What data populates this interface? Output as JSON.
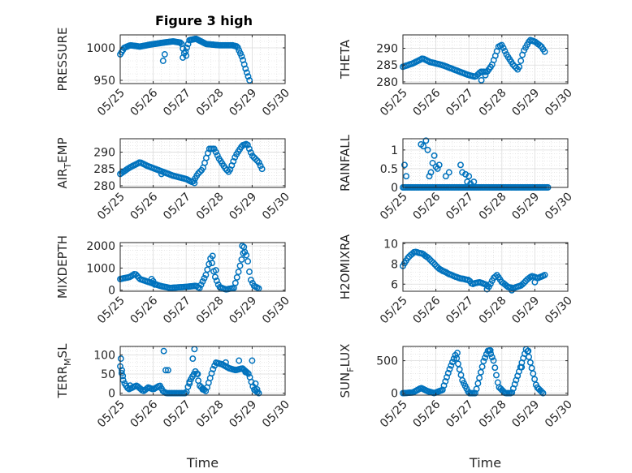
{
  "figure": {
    "title": "Figure 3 high"
  },
  "chart_data": [
    {
      "type": "scatter",
      "ylabel": "PRESSURE",
      "ylim": [
        945,
        1020
      ],
      "yticks": [
        950,
        1000
      ],
      "xlim": [
        0,
        5
      ],
      "xtick_labels": [
        "05/25",
        "05/26",
        "05/27",
        "05/28",
        "05/29",
        "05/30"
      ],
      "grid": true,
      "series": [
        {
          "shape": "mirror",
          "knots": [
            [
              0,
              990
            ],
            [
              0.12,
              1000
            ],
            [
              0.3,
              1004
            ],
            [
              0.6,
              1002
            ],
            [
              0.9,
              1005
            ],
            [
              1.3,
              1008
            ],
            [
              1.6,
              1010
            ],
            [
              1.85,
              1008
            ],
            [
              1.95,
              990
            ],
            [
              2.1,
              1012
            ],
            [
              2.3,
              1014
            ],
            [
              2.6,
              1006
            ],
            [
              3.0,
              1004
            ],
            [
              3.4,
              1004
            ],
            [
              3.55,
              1002
            ],
            [
              3.7,
              985
            ],
            [
              3.8,
              968
            ],
            [
              3.92,
              950
            ]
          ],
          "samples": 100,
          "outliers": [
            [
              1.3,
              980
            ],
            [
              1.35,
              990
            ],
            [
              1.9,
              985
            ],
            [
              2.0,
              988
            ]
          ]
        }
      ]
    },
    {
      "type": "scatter",
      "ylabel": "THETA",
      "ylim": [
        279.5,
        294
      ],
      "yticks": [
        280,
        285,
        290
      ],
      "xlim": [
        0,
        5
      ],
      "xtick_labels": [
        "05/25",
        "05/26",
        "05/27",
        "05/28",
        "05/29",
        "05/30"
      ],
      "grid": true,
      "series": [
        {
          "shape": "mirror",
          "knots": [
            [
              0,
              284.5
            ],
            [
              0.3,
              285.5
            ],
            [
              0.6,
              287
            ],
            [
              0.8,
              286
            ],
            [
              1.2,
              285
            ],
            [
              1.6,
              283.5
            ],
            [
              2.0,
              282
            ],
            [
              2.2,
              281.5
            ],
            [
              2.35,
              283
            ],
            [
              2.55,
              283
            ],
            [
              2.7,
              285
            ],
            [
              2.9,
              290.5
            ],
            [
              3.0,
              291
            ],
            [
              3.15,
              288
            ],
            [
              3.35,
              285
            ],
            [
              3.5,
              283.5
            ],
            [
              3.65,
              289
            ],
            [
              3.85,
              292.5
            ],
            [
              4.0,
              292
            ],
            [
              4.2,
              290.5
            ],
            [
              4.3,
              289
            ]
          ],
          "samples": 90,
          "outliers": [
            [
              2.38,
              280.5
            ],
            [
              2.5,
              282
            ]
          ]
        }
      ]
    },
    {
      "type": "scatter",
      "ylabel": "AIR_TEMP",
      "ylim": [
        279.5,
        294
      ],
      "yticks": [
        280,
        285,
        290
      ],
      "xlim": [
        0,
        5
      ],
      "xtick_labels": [
        "05/25",
        "05/26",
        "05/27",
        "05/28",
        "05/29",
        "05/30"
      ],
      "grid": true,
      "series": [
        {
          "shape": "mirror",
          "knots": [
            [
              0,
              283.5
            ],
            [
              0.3,
              285.5
            ],
            [
              0.6,
              287
            ],
            [
              0.8,
              286
            ],
            [
              1.2,
              284.5
            ],
            [
              1.6,
              283
            ],
            [
              2.0,
              282
            ],
            [
              2.2,
              281
            ],
            [
              2.35,
              283.5
            ],
            [
              2.5,
              285
            ],
            [
              2.7,
              291
            ],
            [
              2.85,
              291
            ],
            [
              3.0,
              288
            ],
            [
              3.2,
              285
            ],
            [
              3.3,
              284
            ],
            [
              3.5,
              289
            ],
            [
              3.7,
              292
            ],
            [
              3.85,
              292.5
            ],
            [
              4.0,
              289
            ],
            [
              4.2,
              287
            ],
            [
              4.3,
              285
            ]
          ],
          "samples": 90,
          "outliers": [
            [
              1.25,
              283.5
            ],
            [
              2.25,
              280.8
            ]
          ]
        }
      ]
    },
    {
      "type": "scatter",
      "ylabel": "RAINFALL",
      "ylim": [
        0,
        1.3
      ],
      "yticks": [
        0,
        0.5,
        1
      ],
      "xlim": [
        0,
        5
      ],
      "xtick_labels": [
        "05/25",
        "05/26",
        "05/27",
        "05/28",
        "05/29",
        "05/30"
      ],
      "grid": true,
      "series": [
        {
          "shape": "mirror",
          "knots": [
            [
              0,
              0
            ],
            [
              4.4,
              0
            ]
          ],
          "samples": 100,
          "outliers": [
            [
              0.05,
              0.6
            ],
            [
              0.1,
              0.3
            ],
            [
              0.55,
              1.15
            ],
            [
              0.62,
              1.1
            ],
            [
              0.7,
              1.25
            ],
            [
              0.75,
              1.0
            ],
            [
              0.8,
              0.3
            ],
            [
              0.85,
              0.4
            ],
            [
              0.9,
              0.65
            ],
            [
              0.95,
              0.85
            ],
            [
              1.0,
              0.55
            ],
            [
              1.05,
              0.5
            ],
            [
              1.1,
              0.6
            ],
            [
              1.3,
              0.3
            ],
            [
              1.4,
              0.4
            ],
            [
              1.75,
              0.6
            ],
            [
              1.8,
              0.4
            ],
            [
              1.9,
              0.35
            ],
            [
              1.95,
              0.15
            ],
            [
              2.0,
              0.3
            ],
            [
              2.05,
              0.1
            ],
            [
              2.15,
              0.15
            ]
          ]
        }
      ]
    },
    {
      "type": "scatter",
      "ylabel": "MIXDEPTH",
      "ylim": [
        -50,
        2150
      ],
      "yticks": [
        0,
        1000,
        2000
      ],
      "xlim": [
        0,
        5
      ],
      "xtick_labels": [
        "05/25",
        "05/26",
        "05/27",
        "05/28",
        "05/29",
        "05/30"
      ],
      "grid": true,
      "series": [
        {
          "shape": "mirror",
          "knots": [
            [
              0,
              500
            ],
            [
              0.3,
              600
            ],
            [
              0.45,
              750
            ],
            [
              0.6,
              500
            ],
            [
              0.9,
              350
            ],
            [
              1.2,
              200
            ],
            [
              1.5,
              100
            ],
            [
              2.0,
              150
            ],
            [
              2.3,
              200
            ],
            [
              2.4,
              80
            ],
            [
              2.6,
              700
            ],
            [
              2.75,
              1500
            ],
            [
              2.85,
              700
            ],
            [
              3.0,
              150
            ],
            [
              3.2,
              30
            ],
            [
              3.45,
              100
            ],
            [
              3.6,
              900
            ],
            [
              3.75,
              1800
            ],
            [
              3.85,
              1500
            ],
            [
              3.95,
              500
            ],
            [
              4.05,
              200
            ],
            [
              4.2,
              80
            ]
          ],
          "samples": 90,
          "outliers": [
            [
              0.95,
              500
            ],
            [
              1.0,
              400
            ],
            [
              1.05,
              250
            ],
            [
              2.8,
              1550
            ],
            [
              2.9,
              900
            ],
            [
              3.7,
              2000
            ],
            [
              3.75,
              1950
            ]
          ]
        }
      ]
    },
    {
      "type": "scatter",
      "ylabel": "H2OMIXRA",
      "ylim": [
        5.3,
        10.1
      ],
      "yticks": [
        6,
        8,
        10
      ],
      "xlim": [
        0,
        5
      ],
      "xtick_labels": [
        "05/25",
        "05/26",
        "05/27",
        "05/28",
        "05/29",
        "05/30"
      ],
      "grid": true,
      "series": [
        {
          "shape": "mirror",
          "knots": [
            [
              0,
              7.8
            ],
            [
              0.15,
              8.6
            ],
            [
              0.35,
              9.2
            ],
            [
              0.6,
              9.0
            ],
            [
              0.8,
              8.5
            ],
            [
              1.1,
              7.5
            ],
            [
              1.4,
              7.0
            ],
            [
              1.7,
              6.6
            ],
            [
              2.0,
              6.4
            ],
            [
              2.1,
              6.0
            ],
            [
              2.3,
              6.2
            ],
            [
              2.5,
              6.0
            ],
            [
              2.6,
              5.7
            ],
            [
              2.75,
              6.6
            ],
            [
              2.85,
              6.9
            ],
            [
              3.0,
              6.2
            ],
            [
              3.2,
              5.7
            ],
            [
              3.35,
              5.6
            ],
            [
              3.6,
              5.9
            ],
            [
              3.75,
              6.4
            ],
            [
              3.9,
              6.8
            ],
            [
              4.1,
              6.6
            ],
            [
              4.3,
              6.9
            ]
          ],
          "samples": 90,
          "outliers": [
            [
              2.55,
              5.5
            ],
            [
              3.3,
              5.4
            ],
            [
              4.0,
              6.2
            ]
          ]
        }
      ]
    },
    {
      "type": "scatter",
      "ylabel": "TERR_MSL",
      "ylim": [
        -5,
        122
      ],
      "yticks": [
        0,
        50,
        100
      ],
      "xlim": [
        0,
        5
      ],
      "xtick_labels": [
        "05/25",
        "05/26",
        "05/27",
        "05/28",
        "05/29",
        "05/30"
      ],
      "grid": true,
      "series": [
        {
          "shape": "mirror",
          "knots": [
            [
              0,
              70
            ],
            [
              0.1,
              30
            ],
            [
              0.25,
              10
            ],
            [
              0.5,
              20
            ],
            [
              0.7,
              5
            ],
            [
              0.85,
              15
            ],
            [
              1.0,
              10
            ],
            [
              1.2,
              20
            ],
            [
              1.3,
              5
            ],
            [
              1.4,
              0
            ],
            [
              2.0,
              0
            ],
            [
              2.1,
              30
            ],
            [
              2.3,
              60
            ],
            [
              2.4,
              20
            ],
            [
              2.6,
              5
            ],
            [
              2.8,
              60
            ],
            [
              2.9,
              80
            ],
            [
              3.1,
              75
            ],
            [
              3.3,
              65
            ],
            [
              3.5,
              60
            ],
            [
              3.7,
              65
            ],
            [
              3.9,
              50
            ],
            [
              4.05,
              10
            ],
            [
              4.2,
              0
            ]
          ],
          "samples": 95,
          "outliers": [
            [
              0.02,
              90
            ],
            [
              0.05,
              60
            ],
            [
              0.08,
              45
            ],
            [
              0.3,
              20
            ],
            [
              1.32,
              110
            ],
            [
              1.38,
              60
            ],
            [
              1.45,
              60
            ],
            [
              2.1,
              25
            ],
            [
              2.2,
              90
            ],
            [
              2.25,
              115
            ],
            [
              2.35,
              50
            ],
            [
              2.5,
              10
            ],
            [
              3.2,
              80
            ],
            [
              3.6,
              85
            ],
            [
              3.8,
              55
            ],
            [
              4.0,
              85
            ],
            [
              4.1,
              25
            ],
            [
              4.15,
              10
            ]
          ]
        }
      ]
    },
    {
      "type": "scatter",
      "ylabel": "SUN_FLUX",
      "ylim": [
        -30,
        720
      ],
      "yticks": [
        0,
        500
      ],
      "xlim": [
        0,
        5
      ],
      "xtick_labels": [
        "05/25",
        "05/26",
        "05/27",
        "05/28",
        "05/29",
        "05/30"
      ],
      "grid": true,
      "series": [
        {
          "shape": "mirror",
          "knots": [
            [
              0,
              0
            ],
            [
              0.3,
              10
            ],
            [
              0.55,
              80
            ],
            [
              0.75,
              30
            ],
            [
              0.95,
              0
            ],
            [
              1.2,
              50
            ],
            [
              1.4,
              350
            ],
            [
              1.6,
              600
            ],
            [
              1.8,
              200
            ],
            [
              2.0,
              0
            ],
            [
              2.2,
              0
            ],
            [
              2.45,
              500
            ],
            [
              2.6,
              680
            ],
            [
              2.75,
              500
            ],
            [
              2.9,
              100
            ],
            [
              3.1,
              0
            ],
            [
              3.3,
              0
            ],
            [
              3.5,
              300
            ],
            [
              3.75,
              700
            ],
            [
              3.9,
              400
            ],
            [
              4.05,
              100
            ],
            [
              4.25,
              0
            ]
          ],
          "samples": 100,
          "outliers": [
            [
              1.65,
              620
            ],
            [
              2.65,
              660
            ],
            [
              3.6,
              400
            ],
            [
              3.8,
              650
            ]
          ]
        }
      ]
    }
  ]
}
